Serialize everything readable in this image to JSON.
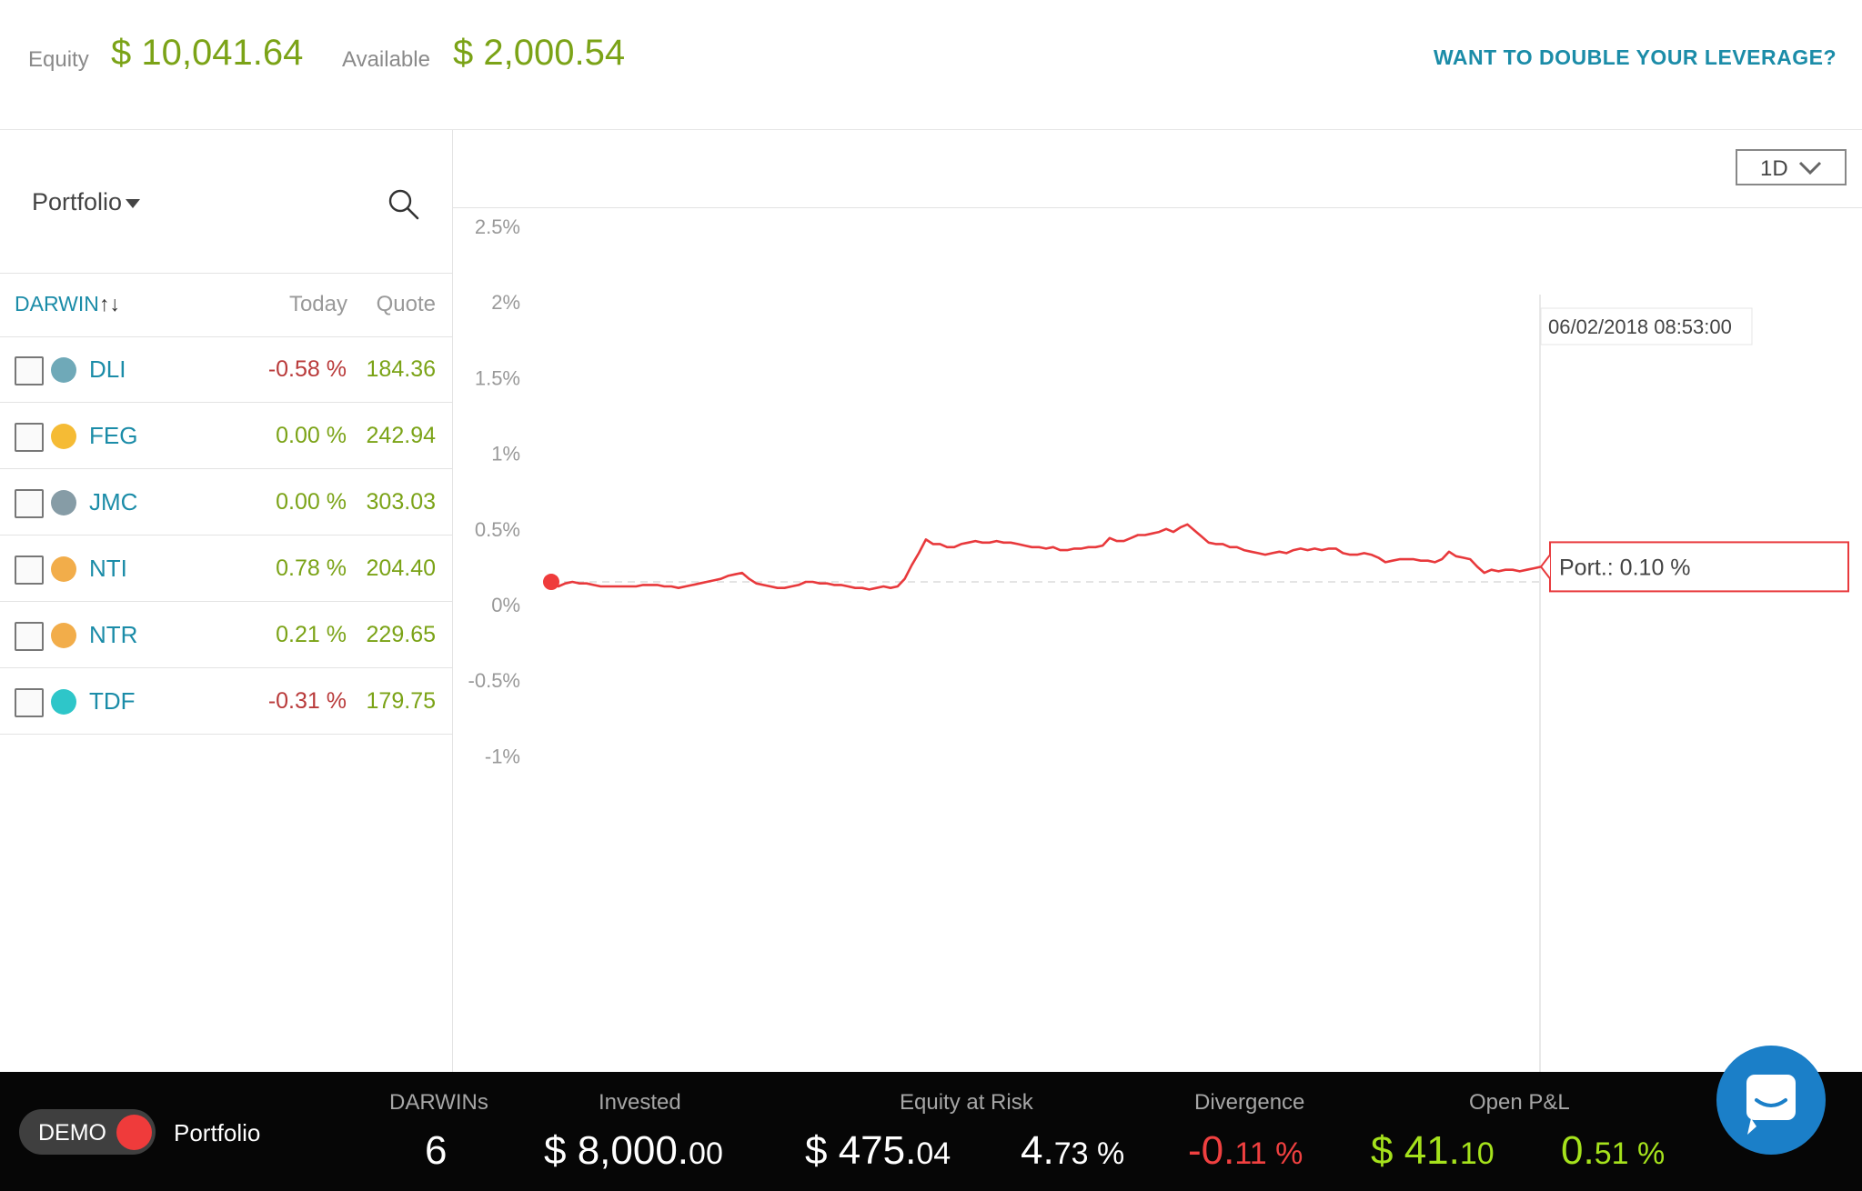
{
  "header": {
    "equity_label": "Equity",
    "equity_value": "$ 10,041.64",
    "available_label": "Available",
    "available_value": "$ 2,000.54",
    "leverage_link": "WANT TO DOUBLE YOUR LEVERAGE?"
  },
  "sidebar": {
    "portfolio_select": "Portfolio",
    "search_icon": "search-icon",
    "columns": {
      "darwin": "DARWIN",
      "sort_icon": "↑↓",
      "today": "Today",
      "quote": "Quote"
    },
    "items": [
      {
        "name": "DLI",
        "today": "-0.58 %",
        "quote": "184.36",
        "dot_color": "#6fa9b8",
        "today_color": "negative"
      },
      {
        "name": "FEG",
        "today": "0.00 %",
        "quote": "242.94",
        "dot_color": "#f5bb35",
        "today_color": "positive"
      },
      {
        "name": "JMC",
        "today": "0.00 %",
        "quote": "303.03",
        "dot_color": "#869ca6",
        "today_color": "positive"
      },
      {
        "name": "NTI",
        "today": "0.78 %",
        "quote": "204.40",
        "dot_color": "#f2ad4a",
        "today_color": "positive"
      },
      {
        "name": "NTR",
        "today": "0.21 %",
        "quote": "229.65",
        "dot_color": "#f2ad4a",
        "today_color": "positive"
      },
      {
        "name": "TDF",
        "today": "-0.31 %",
        "quote": "179.75",
        "dot_color": "#2ec6c9",
        "today_color": "negative"
      }
    ]
  },
  "chart_toolbar": {
    "range": "1D"
  },
  "chart_data": {
    "type": "line",
    "title": "",
    "xlabel": "",
    "ylabel": "",
    "yticks": [
      "2.5%",
      "2%",
      "1.5%",
      "1%",
      "0.5%",
      "0%",
      "-0.5%",
      "-1%"
    ],
    "ylim": [
      -1.1,
      2.6
    ],
    "baseline": 0.15,
    "line_color": "#e8393c",
    "series": [
      {
        "values": [
          0.15,
          0.12,
          0.14,
          0.15,
          0.14,
          0.14,
          0.13,
          0.12,
          0.12,
          0.12,
          0.12,
          0.12,
          0.12,
          0.13,
          0.13,
          0.13,
          0.12,
          0.12,
          0.11,
          0.12,
          0.13,
          0.14,
          0.15,
          0.16,
          0.17,
          0.19,
          0.2,
          0.21,
          0.17,
          0.14,
          0.13,
          0.12,
          0.11,
          0.11,
          0.12,
          0.13,
          0.15,
          0.15,
          0.14,
          0.14,
          0.13,
          0.13,
          0.12,
          0.11,
          0.11,
          0.1,
          0.11,
          0.12,
          0.11,
          0.12,
          0.17,
          0.26,
          0.34,
          0.43,
          0.4,
          0.4,
          0.38,
          0.38,
          0.4,
          0.41,
          0.42,
          0.41,
          0.41,
          0.42,
          0.41,
          0.41,
          0.4,
          0.39,
          0.38,
          0.38,
          0.37,
          0.38,
          0.36,
          0.36,
          0.37,
          0.37,
          0.38,
          0.38,
          0.39,
          0.44,
          0.42,
          0.42,
          0.44,
          0.46,
          0.46,
          0.47,
          0.48,
          0.5,
          0.48,
          0.51,
          0.53,
          0.49,
          0.45,
          0.41,
          0.4,
          0.4,
          0.38,
          0.38,
          0.36,
          0.35,
          0.34,
          0.33,
          0.34,
          0.35,
          0.34,
          0.36,
          0.37,
          0.36,
          0.37,
          0.36,
          0.37,
          0.37,
          0.34,
          0.33,
          0.33,
          0.34,
          0.33,
          0.31,
          0.28,
          0.29,
          0.3,
          0.3,
          0.3,
          0.29,
          0.29,
          0.28,
          0.3,
          0.35,
          0.32,
          0.31,
          0.3,
          0.25,
          0.21,
          0.23,
          0.22,
          0.23,
          0.23,
          0.22,
          0.23,
          0.24,
          0.25
        ]
      }
    ],
    "tooltip": {
      "datetime": "06/02/2018 08:53:00",
      "label": "Port.: 0.10 %"
    }
  },
  "footer": {
    "mode_label": "DEMO",
    "portfolio_label": "Portfolio",
    "stats": {
      "darwins": {
        "label": "DARWINs",
        "value": "6"
      },
      "invested": {
        "label": "Invested",
        "int": "$ 8,000.",
        "dec": "00"
      },
      "equity_at_risk": {
        "label": "Equity at Risk",
        "int": "$ 475.",
        "dec": "04",
        "pct_int": "4.",
        "pct_dec": "73 %"
      },
      "divergence": {
        "label": "Divergence",
        "int": "-0.",
        "dec": "11 %"
      },
      "open_pnl": {
        "label": "Open P&L",
        "int": "$ 41.",
        "dec": "10",
        "pct_int": "0.",
        "pct_dec": "51 %"
      }
    }
  },
  "chat": {
    "icon": "chat-icon"
  }
}
